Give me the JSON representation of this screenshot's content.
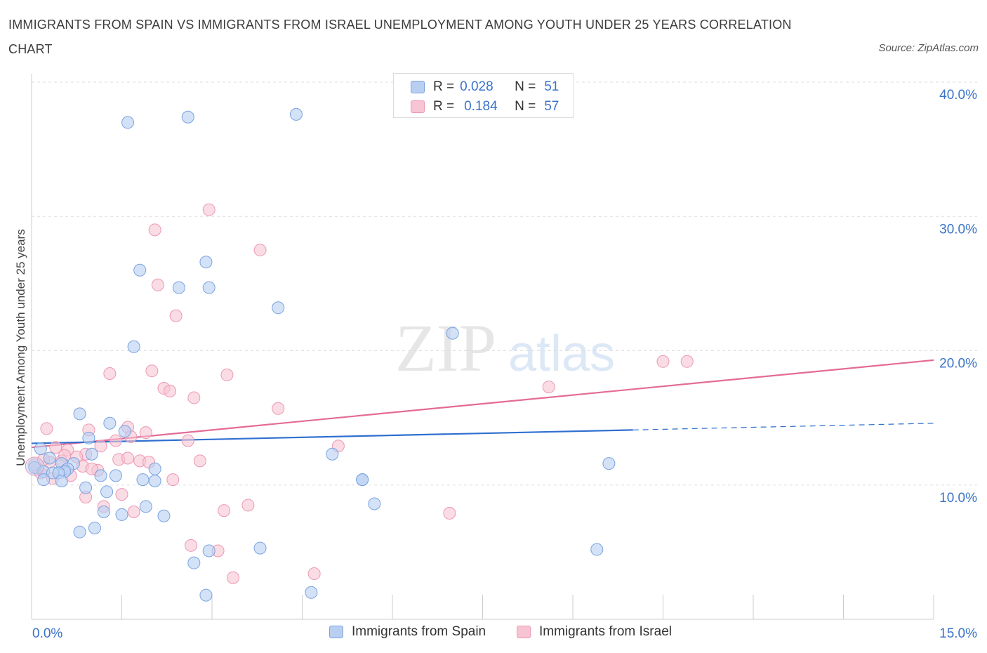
{
  "title": "IMMIGRANTS FROM SPAIN VS IMMIGRANTS FROM ISRAEL UNEMPLOYMENT AMONG YOUTH UNDER 25 YEARS CORRELATION CHART",
  "source": "Source: ZipAtlas.com",
  "watermark": {
    "zip": "ZIP",
    "atlas": "atlas"
  },
  "legend": {
    "spain": {
      "r_label": "R =",
      "r_value": "0.028",
      "n_label": "N =",
      "n_value": "51"
    },
    "israel": {
      "r_label": "R =",
      "r_value": "0.184",
      "n_label": "N =",
      "n_value": "57"
    }
  },
  "colors": {
    "spain_fill": "#b8cff2",
    "spain_stroke": "#7aa3e0",
    "spain_line": "#2f6fd0",
    "israel_fill": "#f7c4d4",
    "israel_stroke": "#ec98b3",
    "israel_line": "#e46b96",
    "tick_text": "#3a73c9",
    "grid": "#dddddd"
  },
  "chart_data": {
    "type": "scatter",
    "title": "IMMIGRANTS FROM SPAIN VS IMMIGRANTS FROM ISRAEL UNEMPLOYMENT AMONG YOUTH UNDER 25 YEARS CORRELATION CHART",
    "xlabel": "",
    "ylabel": "Unemployment Among Youth under 25 years",
    "xlim": [
      0,
      15
    ],
    "ylim": [
      0,
      40
    ],
    "x_tick_labels": [
      "0.0%",
      "15.0%"
    ],
    "y_ticks": [
      10,
      20,
      30,
      40
    ],
    "y_tick_labels": [
      "10.0%",
      "20.0%",
      "30.0%",
      "40.0%"
    ],
    "grid": true,
    "legend_placement": "bottom-center",
    "series": [
      {
        "name": "Immigrants from Spain",
        "color": "#7aa3e0",
        "trend": {
          "x": [
            0,
            10
          ],
          "y": [
            13.1,
            14.1
          ],
          "dashed_x": [
            10,
            15
          ],
          "dashed_y": [
            14.1,
            14.6
          ]
        },
        "points": [
          [
            1.6,
            37.0
          ],
          [
            2.6,
            37.4
          ],
          [
            4.4,
            37.6
          ],
          [
            1.8,
            26.0
          ],
          [
            2.9,
            26.6
          ],
          [
            2.45,
            24.7
          ],
          [
            2.95,
            24.7
          ],
          [
            4.1,
            23.2
          ],
          [
            7.0,
            21.3
          ],
          [
            1.7,
            20.3
          ],
          [
            0.8,
            15.3
          ],
          [
            1.3,
            14.6
          ],
          [
            1.55,
            14.0
          ],
          [
            0.95,
            13.5
          ],
          [
            1.0,
            12.3
          ],
          [
            0.3,
            12.0
          ],
          [
            0.15,
            12.7
          ],
          [
            0.05,
            11.3
          ],
          [
            0.2,
            11.0
          ],
          [
            0.35,
            10.9
          ],
          [
            0.5,
            11.6
          ],
          [
            0.7,
            11.6
          ],
          [
            0.6,
            11.2
          ],
          [
            0.55,
            11.0
          ],
          [
            0.45,
            10.9
          ],
          [
            0.2,
            10.4
          ],
          [
            0.5,
            10.3
          ],
          [
            0.9,
            9.8
          ],
          [
            1.15,
            10.7
          ],
          [
            1.4,
            10.7
          ],
          [
            2.05,
            11.2
          ],
          [
            1.85,
            10.4
          ],
          [
            2.05,
            10.3
          ],
          [
            1.25,
            9.5
          ],
          [
            1.9,
            8.4
          ],
          [
            1.2,
            8.0
          ],
          [
            1.5,
            7.8
          ],
          [
            2.2,
            7.7
          ],
          [
            0.8,
            6.5
          ],
          [
            1.05,
            6.8
          ],
          [
            2.7,
            4.2
          ],
          [
            2.95,
            5.1
          ],
          [
            3.8,
            5.3
          ],
          [
            2.9,
            1.8
          ],
          [
            4.65,
            2.0
          ],
          [
            5.0,
            12.3
          ],
          [
            5.5,
            10.4
          ],
          [
            5.5,
            10.4
          ],
          [
            5.7,
            8.6
          ],
          [
            9.6,
            11.6
          ],
          [
            9.4,
            5.2
          ]
        ]
      },
      {
        "name": "Immigrants from Israel",
        "color": "#ec98b3",
        "trend": {
          "x": [
            0,
            15
          ],
          "y": [
            12.8,
            19.3
          ]
        },
        "points": [
          [
            2.95,
            30.5
          ],
          [
            2.05,
            29.0
          ],
          [
            3.8,
            27.5
          ],
          [
            2.1,
            24.9
          ],
          [
            2.4,
            22.6
          ],
          [
            1.3,
            18.3
          ],
          [
            2.0,
            18.5
          ],
          [
            3.25,
            18.2
          ],
          [
            2.2,
            17.2
          ],
          [
            2.3,
            17.0
          ],
          [
            2.7,
            16.5
          ],
          [
            4.1,
            15.7
          ],
          [
            0.25,
            14.2
          ],
          [
            0.95,
            14.1
          ],
          [
            1.6,
            14.3
          ],
          [
            1.65,
            13.6
          ],
          [
            1.9,
            13.9
          ],
          [
            1.4,
            13.3
          ],
          [
            1.15,
            12.9
          ],
          [
            0.4,
            12.8
          ],
          [
            0.6,
            12.6
          ],
          [
            0.9,
            12.3
          ],
          [
            0.75,
            12.1
          ],
          [
            0.5,
            11.8
          ],
          [
            0.3,
            11.7
          ],
          [
            0.1,
            11.2
          ],
          [
            0.15,
            10.9
          ],
          [
            0.35,
            10.5
          ],
          [
            0.65,
            10.7
          ],
          [
            0.85,
            11.4
          ],
          [
            1.1,
            11.1
          ],
          [
            1.45,
            11.9
          ],
          [
            1.6,
            12.0
          ],
          [
            1.8,
            11.8
          ],
          [
            1.95,
            11.7
          ],
          [
            2.6,
            13.3
          ],
          [
            2.8,
            11.8
          ],
          [
            2.35,
            10.4
          ],
          [
            5.1,
            12.9
          ],
          [
            0.9,
            9.1
          ],
          [
            1.5,
            9.3
          ],
          [
            1.7,
            8.0
          ],
          [
            1.2,
            8.4
          ],
          [
            3.2,
            8.1
          ],
          [
            3.6,
            8.5
          ],
          [
            6.95,
            7.9
          ],
          [
            2.65,
            5.5
          ],
          [
            3.1,
            5.1
          ],
          [
            3.35,
            3.1
          ],
          [
            4.7,
            3.4
          ],
          [
            8.6,
            17.3
          ],
          [
            10.5,
            19.2
          ],
          [
            10.9,
            19.2
          ],
          [
            0.05,
            11.5
          ],
          [
            0.2,
            11.9
          ],
          [
            0.55,
            12.2
          ],
          [
            1.0,
            11.2
          ]
        ]
      }
    ]
  },
  "bottom_legend": {
    "spain": "Immigrants from Spain",
    "israel": "Immigrants from Israel"
  }
}
